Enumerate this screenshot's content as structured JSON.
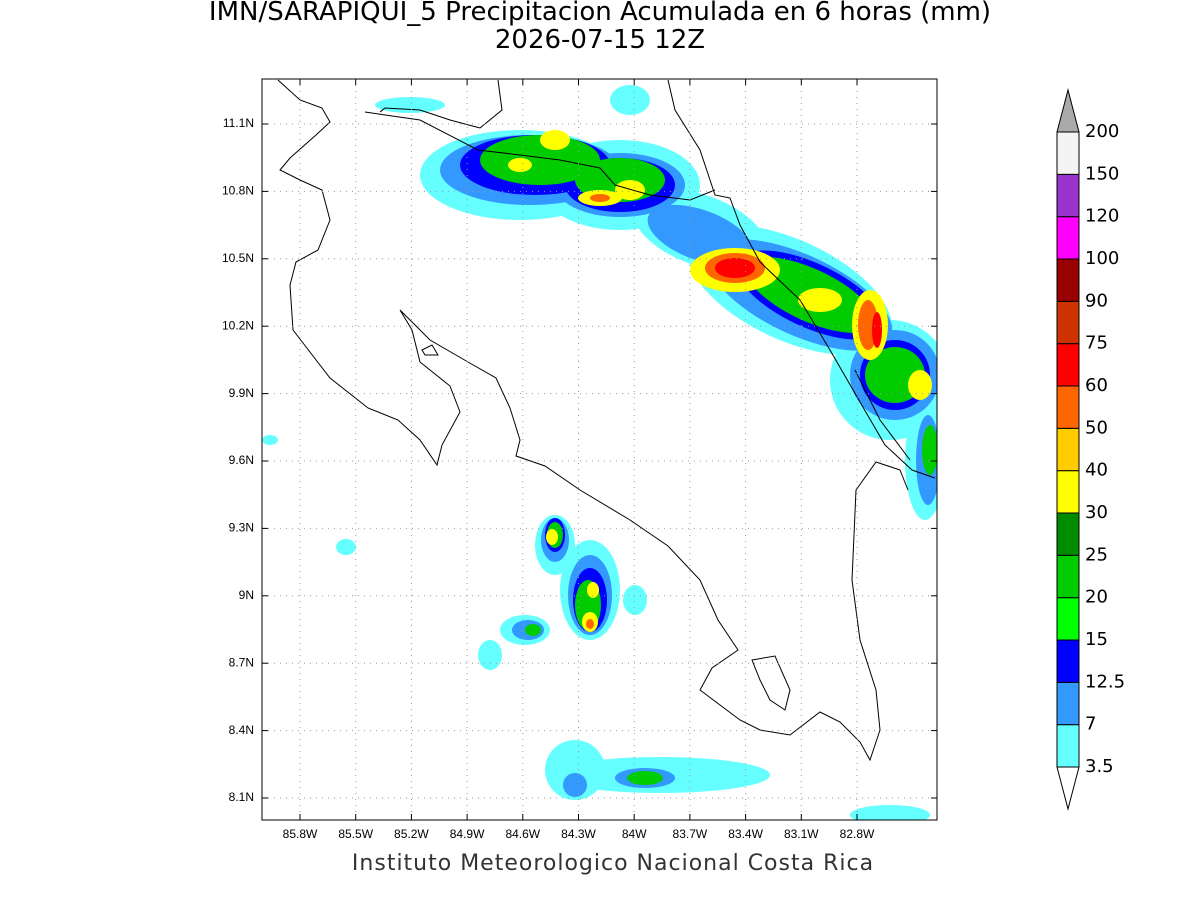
{
  "title": "IMN/SARAPIQUI_5 Precipitacion Acumulada en 6 horas (mm)",
  "subtitle": "2026-07-15 12Z",
  "footer": "Instituto Meteorologico Nacional Costa Rica",
  "map": {
    "lat_ticks": [
      {
        "value": 11.1,
        "label": "11.1N"
      },
      {
        "value": 10.8,
        "label": "10.8N"
      },
      {
        "value": 10.5,
        "label": "10.5N"
      },
      {
        "value": 10.2,
        "label": "10.2N"
      },
      {
        "value": 9.9,
        "label": "9.9N"
      },
      {
        "value": 9.6,
        "label": "9.6N"
      },
      {
        "value": 9.3,
        "label": "9.3N"
      },
      {
        "value": 9.0,
        "label": "9N"
      },
      {
        "value": 8.7,
        "label": "8.7N"
      },
      {
        "value": 8.4,
        "label": "8.4N"
      },
      {
        "value": 8.1,
        "label": "8.1N"
      }
    ],
    "lon_ticks": [
      {
        "value": -85.8,
        "label": "85.8W"
      },
      {
        "value": -85.5,
        "label": "85.5W"
      },
      {
        "value": -85.2,
        "label": "85.2W"
      },
      {
        "value": -84.9,
        "label": "84.9W"
      },
      {
        "value": -84.6,
        "label": "84.6W"
      },
      {
        "value": -84.3,
        "label": "84.3W"
      },
      {
        "value": -84.0,
        "label": "84W"
      },
      {
        "value": -83.7,
        "label": "83.7W"
      },
      {
        "value": -83.4,
        "label": "83.4W"
      },
      {
        "value": -83.1,
        "label": "83.1W"
      },
      {
        "value": -82.8,
        "label": "82.8W"
      }
    ],
    "grid": true
  },
  "colorbar": {
    "levels": [
      3.5,
      7,
      12.5,
      15,
      20,
      25,
      30,
      40,
      50,
      60,
      75,
      90,
      100,
      120,
      150,
      200
    ],
    "colors": [
      "#66ffff",
      "#3399ff",
      "#0000ff",
      "#00ff00",
      "#00cc00",
      "#008c00",
      "#ffff00",
      "#ffcc00",
      "#ff6600",
      "#ff0000",
      "#cc3300",
      "#990000",
      "#ff00ff",
      "#9933cc",
      "#f4f4f4"
    ],
    "under_color": "#ffffff",
    "over_color": "#aaaaaa"
  }
}
